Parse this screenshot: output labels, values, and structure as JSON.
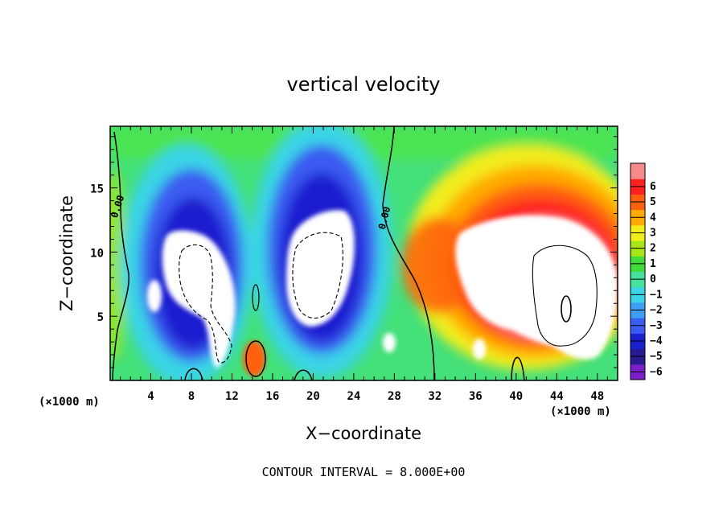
{
  "chart_data": {
    "type": "heatmap",
    "title": "vertical velocity",
    "xlabel": "X−coordinate",
    "ylabel": "Z−coordinate",
    "x_unit_label": "(×1000 m)",
    "y_unit_label": "(×1000 m)",
    "xlim": [
      0,
      50
    ],
    "ylim": [
      0,
      19.8
    ],
    "x_ticks": [
      4,
      8,
      12,
      16,
      20,
      24,
      28,
      32,
      36,
      40,
      44,
      48
    ],
    "y_ticks": [
      5,
      10,
      15
    ],
    "note": "CONTOUR INTERVAL = 8.000E+00",
    "contour_label": "0.00",
    "colorbar": {
      "levels": [
        -6,
        -5,
        -4,
        -3,
        -2,
        -1,
        0,
        1,
        2,
        3,
        4,
        5,
        6
      ],
      "labels": [
        "−6",
        "−5",
        "−4",
        "−3",
        "−2",
        "−1",
        "0",
        "1",
        "2",
        "3",
        "4",
        "5",
        "6"
      ],
      "colors": [
        "#7a1fc9",
        "#2a1a8f",
        "#1a1fd0",
        "#3a5cf0",
        "#3ea0f4",
        "#3ad4e6",
        "#44e29c",
        "#3fdc3a",
        "#a8e61a",
        "#f2ec1a",
        "#ffaa00",
        "#ff6010",
        "#ff2020",
        "#f48a8a"
      ],
      "over_under": "white"
    },
    "features": [
      {
        "kind": "updraft",
        "x": 40.5,
        "z": 8.5,
        "peak": 14
      },
      {
        "kind": "downdraft",
        "x": 8.5,
        "z": 9.0,
        "peak": -14
      },
      {
        "kind": "downdraft",
        "x": 20.5,
        "z": 8.5,
        "peak": -14
      },
      {
        "kind": "downdraft",
        "x": 27.5,
        "z": 3.0,
        "peak": -8
      },
      {
        "kind": "downdraft",
        "x": 4.5,
        "z": 6.5,
        "peak": -7
      },
      {
        "kind": "downdraft",
        "x": 36.5,
        "z": 2.5,
        "peak": -6
      },
      {
        "kind": "updraft",
        "x": 14.5,
        "z": 1.5,
        "peak": 4
      }
    ]
  }
}
